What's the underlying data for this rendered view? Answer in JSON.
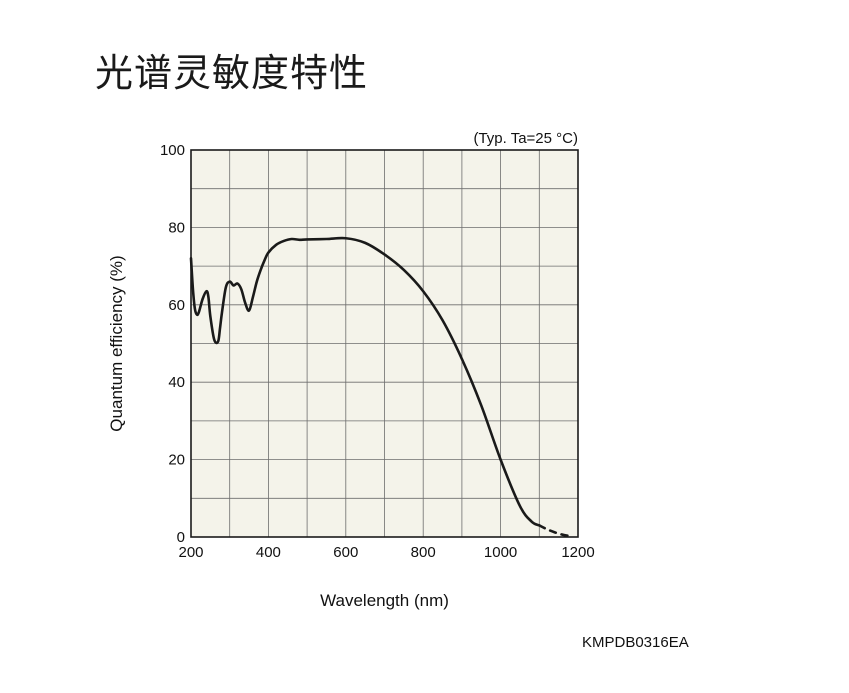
{
  "page": {
    "title": "光谱灵敏度特性",
    "code": "KMPDB0316EA"
  },
  "chart_data": {
    "type": "line",
    "title": "",
    "annotation": "(Typ. Ta=25 °C)",
    "xlabel": "Wavelength (nm)",
    "ylabel": "Quantum efficiency (%)",
    "xlim": [
      200,
      1200
    ],
    "ylim": [
      0,
      100
    ],
    "xticks": [
      200,
      400,
      600,
      800,
      1000,
      1200
    ],
    "yticks": [
      0,
      20,
      40,
      60,
      80,
      100
    ],
    "grid": true,
    "background": "#f4f3ea",
    "line_color": "#1a1a1a",
    "series": [
      {
        "style": "solid",
        "x": [
          200,
          205,
          210,
          215,
          220,
          230,
          240,
          245,
          250,
          260,
          270,
          275,
          280,
          290,
          300,
          310,
          320,
          330,
          340,
          350,
          360,
          370,
          380,
          390,
          400,
          420,
          440,
          460,
          480,
          500,
          550,
          600,
          650,
          700,
          750,
          800,
          850,
          900,
          950,
          1000,
          1050,
          1080,
          1100
        ],
        "y": [
          72,
          64,
          59,
          57.5,
          58,
          61.5,
          63.5,
          62,
          57,
          51,
          50.5,
          54,
          58,
          64.5,
          66,
          65,
          65.5,
          64,
          60.5,
          58.5,
          62,
          66,
          69,
          71.5,
          73.5,
          75.5,
          76.5,
          77,
          76.8,
          76.9,
          77,
          77.2,
          76,
          73,
          69,
          63.5,
          56,
          46,
          34,
          20,
          8,
          4,
          3
        ]
      },
      {
        "style": "dashed",
        "x": [
          1100,
          1120,
          1140,
          1160,
          1180
        ],
        "y": [
          3,
          2,
          1.2,
          0.6,
          0.2
        ]
      }
    ]
  }
}
